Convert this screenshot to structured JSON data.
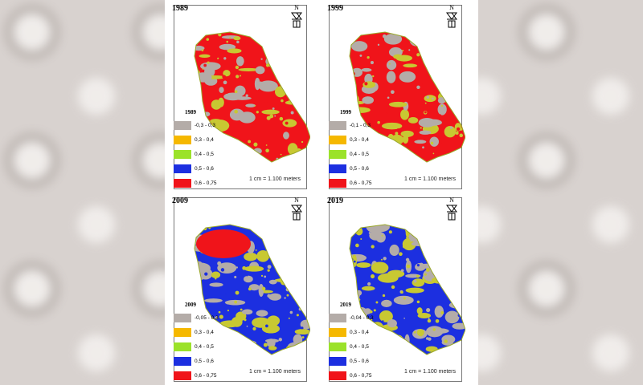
{
  "panels": [
    {
      "year": "1989",
      "legend_title": "1989",
      "legend": [
        {
          "label": "-0,3 - 0,3",
          "color": "#b4aca8"
        },
        {
          "label": "0,3 - 0,4",
          "color": "#f5b800"
        },
        {
          "label": "0,4 - 0,5",
          "color": "#9be22a"
        },
        {
          "label": "0,5 - 0,6",
          "color": "#1c2fe0"
        },
        {
          "label": "0,6 - 0,75",
          "color": "#f0141a"
        }
      ],
      "scale": "1 cm = 1.100 meters",
      "dominant": "#f0141a",
      "secondary": "#b4aca8",
      "mottle": "#c8c832"
    },
    {
      "year": "1999",
      "legend_title": "1999",
      "legend": [
        {
          "label": "-0,1 - 0,3",
          "color": "#b4aca8"
        },
        {
          "label": "0,3 - 0,4",
          "color": "#f5b800"
        },
        {
          "label": "0,4 - 0,5",
          "color": "#9be22a"
        },
        {
          "label": "0,5 - 0,6",
          "color": "#1c2fe0"
        },
        {
          "label": "0,6 - 0,75",
          "color": "#f0141a"
        }
      ],
      "scale": "1 cm = 1.100 meters",
      "dominant": "#f0141a",
      "secondary": "#b4aca8",
      "mottle": "#c8c832"
    },
    {
      "year": "2009",
      "legend_title": "2009",
      "legend": [
        {
          "label": "-0,05 - 0,3",
          "color": "#b4aca8"
        },
        {
          "label": "0,3 - 0,4",
          "color": "#f5b800"
        },
        {
          "label": "0,4 - 0,5",
          "color": "#9be22a"
        },
        {
          "label": "0,5 - 0,6",
          "color": "#1c2fe0"
        },
        {
          "label": "0,6 - 0,75",
          "color": "#f0141a"
        }
      ],
      "scale": "1 cm = 1.100 meters",
      "dominant": "#1c2fe0",
      "secondary": "#b4aca8",
      "mottle": "#c8c832",
      "north_patch": "#f0141a"
    },
    {
      "year": "2019",
      "legend_title": "2019",
      "legend": [
        {
          "label": "-0,04 - 0,3",
          "color": "#b4aca8"
        },
        {
          "label": "0,3 - 0,4",
          "color": "#f5b800"
        },
        {
          "label": "0,4 - 0,5",
          "color": "#9be22a"
        },
        {
          "label": "0,5 - 0,6",
          "color": "#1c2fe0"
        },
        {
          "label": "0,6 - 0,75",
          "color": "#f0141a"
        }
      ],
      "scale": "1 cm = 1.100 meters",
      "dominant": "#1c2fe0",
      "secondary": "#b4aca8",
      "mottle": "#c8c832"
    }
  ],
  "north_label": "N"
}
